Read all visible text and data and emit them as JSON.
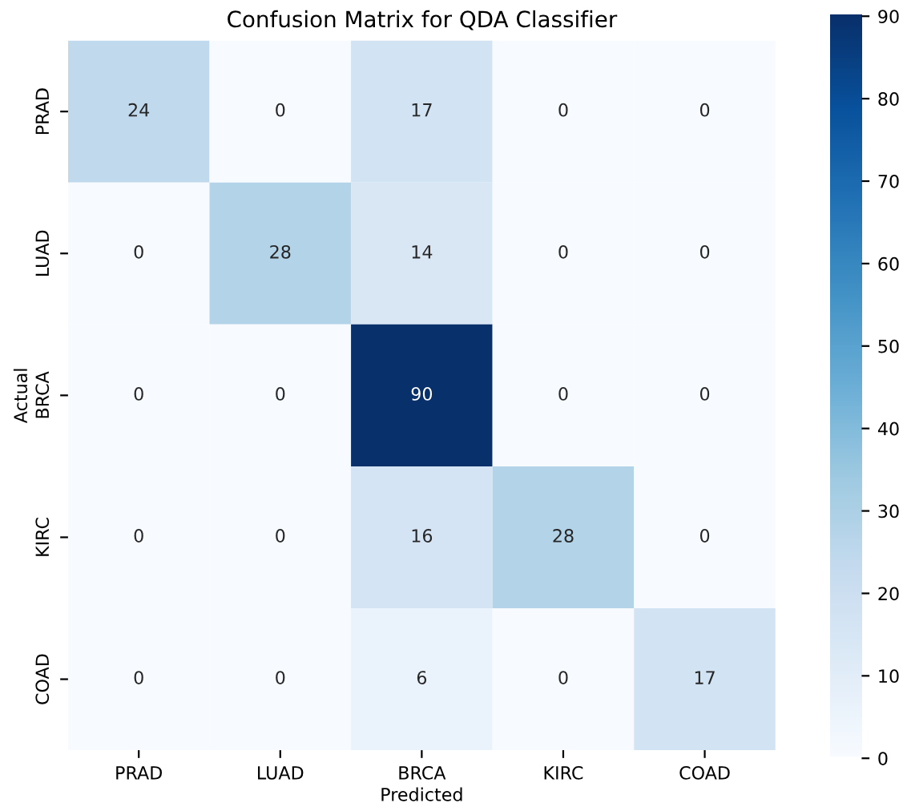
{
  "chart_data": {
    "type": "heatmap",
    "title": "Confusion Matrix for QDA Classifier",
    "xlabel": "Predicted",
    "ylabel": "Actual",
    "categories": [
      "PRAD",
      "LUAD",
      "BRCA",
      "KIRC",
      "COAD"
    ],
    "y_categories": [
      "PRAD",
      "LUAD",
      "BRCA",
      "KIRC",
      "COAD"
    ],
    "cells": [
      [
        24,
        0,
        17,
        0,
        0
      ],
      [
        0,
        28,
        14,
        0,
        0
      ],
      [
        0,
        0,
        90,
        0,
        0
      ],
      [
        0,
        0,
        16,
        28,
        0
      ],
      [
        0,
        0,
        6,
        0,
        17
      ]
    ],
    "data_labels": true,
    "clim": [
      0,
      90
    ],
    "cticks": [
      0,
      10,
      20,
      30,
      40,
      50,
      60,
      70,
      80,
      90
    ]
  }
}
